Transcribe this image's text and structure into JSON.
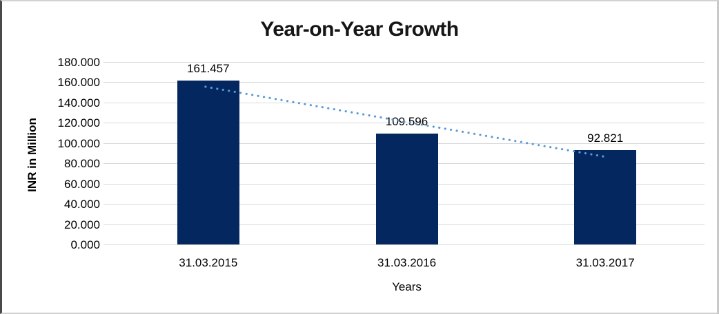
{
  "chart_data": {
    "type": "bar",
    "title": "Year-on-Year Growth",
    "xlabel": "Years",
    "ylabel": "INR in Million",
    "categories": [
      "31.03.2015",
      "31.03.2016",
      "31.03.2017"
    ],
    "values": [
      161.457,
      109.596,
      92.821
    ],
    "data_labels": [
      "161.457",
      "109.596",
      "92.821"
    ],
    "ylim": [
      0,
      180
    ],
    "ytick_step": 20,
    "yticks": [
      "180.000",
      "160.000",
      "140.000",
      "120.000",
      "100.000",
      "80.000",
      "60.000",
      "40.000",
      "20.000",
      "0.000"
    ],
    "grid": true,
    "legend": false,
    "bar_color": "#04275f",
    "gridline_color": "#d9d9d9",
    "text_color": "#000000",
    "trendline": {
      "type": "linear",
      "style": "dotted",
      "color": "#5b9bd5",
      "endpoint_values": [
        155.6,
        86.5
      ]
    }
  }
}
